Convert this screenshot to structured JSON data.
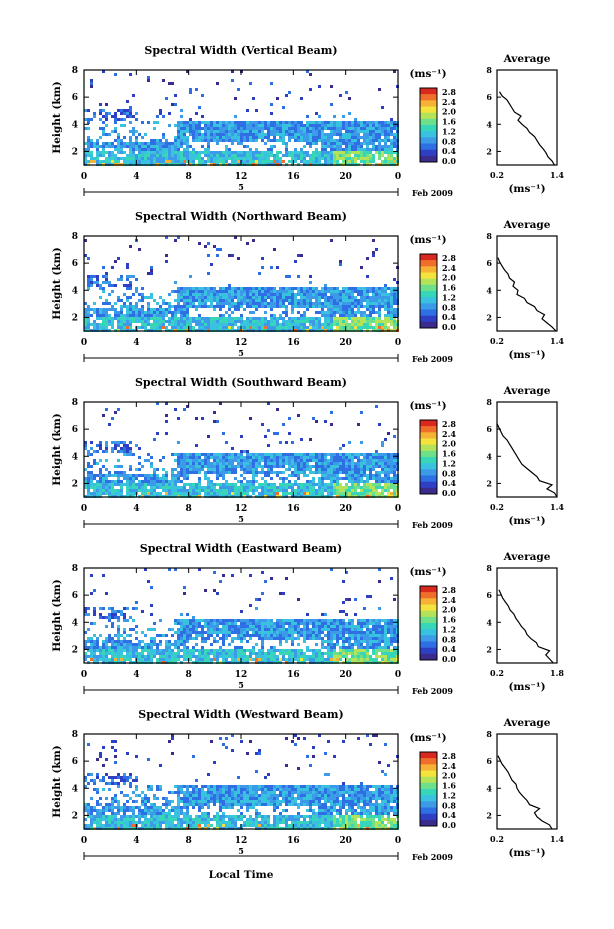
{
  "figure": {
    "colorbar_unit": "(ms⁻¹)",
    "average_title": "Average",
    "date_label": "Feb 2009",
    "day_label": "5",
    "xlabel": "Local Time"
  },
  "colors": {
    "colormap": [
      "#3a2b8c",
      "#2e3fc4",
      "#2f6fe4",
      "#3b9be8",
      "#39c2e0",
      "#38d6b8",
      "#6fe08a",
      "#b4e35a",
      "#f3e33c",
      "#f6b234",
      "#ef6f2a",
      "#d9281e"
    ],
    "background": "#ffffff"
  },
  "chart_data": [
    {
      "type": "heatmap",
      "title": "Spectral Width (Vertical Beam)",
      "ylabel": "Height (km)",
      "xlabel": "",
      "x_ticks": [
        "0",
        "4",
        "8",
        "12",
        "16",
        "20",
        "0"
      ],
      "y_ticks": [
        "2",
        "4",
        "6",
        "8"
      ],
      "xlim": [
        0,
        24
      ],
      "ylim": [
        1,
        8
      ],
      "colorbar": {
        "label": "(ms⁻¹)",
        "ticks": [
          "2.8",
          "2.4",
          "2.0",
          "1.6",
          "1.2",
          "0.8",
          "0.4",
          "0.0"
        ],
        "range": [
          0,
          2.8
        ]
      },
      "average": {
        "title": "Average",
        "xlabel": "(ms⁻¹)",
        "x_ticks": [
          "0.2",
          "1.4"
        ],
        "y_ticks": [
          "2",
          "4",
          "6",
          "8"
        ],
        "xlim": [
          0.2,
          1.4
        ],
        "ylim": [
          1,
          8
        ],
        "heights": [
          1.0,
          1.3,
          1.6,
          1.9,
          2.2,
          2.5,
          2.8,
          3.1,
          3.4,
          3.7,
          4.0,
          4.3,
          4.6,
          4.9,
          5.2,
          5.5,
          5.8,
          6.1,
          6.4
        ],
        "values": [
          1.35,
          1.3,
          1.22,
          1.18,
          1.12,
          1.05,
          1.0,
          0.95,
          0.85,
          0.8,
          0.7,
          0.62,
          0.68,
          0.55,
          0.5,
          0.45,
          0.4,
          0.3,
          0.25
        ]
      }
    },
    {
      "type": "heatmap",
      "title": "Spectral Width (Northward Beam)",
      "ylabel": "Height (km)",
      "xlabel": "",
      "x_ticks": [
        "0",
        "4",
        "8",
        "12",
        "16",
        "20",
        "0"
      ],
      "y_ticks": [
        "2",
        "4",
        "6",
        "8"
      ],
      "xlim": [
        0,
        24
      ],
      "ylim": [
        1,
        8
      ],
      "colorbar": {
        "label": "(ms⁻¹)",
        "ticks": [
          "2.8",
          "2.4",
          "2.0",
          "1.6",
          "1.2",
          "0.8",
          "0.4",
          "0.0"
        ],
        "range": [
          0,
          2.8
        ]
      },
      "average": {
        "title": "Average",
        "xlabel": "(ms⁻¹)",
        "x_ticks": [
          "0.2",
          "1.4"
        ],
        "y_ticks": [
          "2",
          "4",
          "6",
          "8"
        ],
        "xlim": [
          0.2,
          1.4
        ],
        "ylim": [
          1,
          8
        ],
        "heights": [
          1.0,
          1.3,
          1.6,
          1.9,
          2.2,
          2.5,
          2.8,
          3.1,
          3.4,
          3.7,
          4.0,
          4.3,
          4.6,
          4.9,
          5.2,
          5.5,
          5.8,
          6.1,
          6.4
        ],
        "values": [
          1.38,
          1.3,
          1.2,
          1.1,
          1.15,
          1.0,
          0.95,
          0.8,
          0.75,
          0.6,
          0.62,
          0.52,
          0.55,
          0.45,
          0.42,
          0.35,
          0.3,
          0.25,
          0.22
        ]
      }
    },
    {
      "type": "heatmap",
      "title": "Spectral Width (Southward Beam)",
      "ylabel": "Height (km)",
      "xlabel": "",
      "x_ticks": [
        "0",
        "4",
        "8",
        "12",
        "16",
        "20",
        "0"
      ],
      "y_ticks": [
        "2",
        "4",
        "6",
        "8"
      ],
      "xlim": [
        0,
        24
      ],
      "ylim": [
        1,
        8
      ],
      "colorbar": {
        "label": "(ms⁻¹)",
        "ticks": [
          "2.8",
          "2.4",
          "2.0",
          "1.6",
          "1.2",
          "0.8",
          "0.4",
          "0.0"
        ],
        "range": [
          0,
          2.8
        ]
      },
      "average": {
        "title": "Average",
        "xlabel": "(ms⁻¹)",
        "x_ticks": [
          "0.2",
          "1.4"
        ],
        "y_ticks": [
          "2",
          "4",
          "6",
          "8"
        ],
        "xlim": [
          0.2,
          1.4
        ],
        "ylim": [
          1,
          8
        ],
        "heights": [
          1.0,
          1.3,
          1.6,
          1.9,
          2.2,
          2.5,
          2.8,
          3.1,
          3.4,
          3.7,
          4.0,
          4.3,
          4.6,
          4.9,
          5.2,
          5.5,
          5.8,
          6.1,
          6.4
        ],
        "values": [
          1.4,
          1.35,
          1.2,
          1.3,
          1.05,
          1.0,
          0.9,
          0.8,
          0.7,
          0.65,
          0.6,
          0.55,
          0.5,
          0.45,
          0.4,
          0.32,
          0.28,
          0.24,
          0.2
        ]
      }
    },
    {
      "type": "heatmap",
      "title": "Spectral Width (Eastward Beam)",
      "ylabel": "Height (km)",
      "xlabel": "",
      "x_ticks": [
        "0",
        "4",
        "8",
        "12",
        "16",
        "20",
        "0"
      ],
      "y_ticks": [
        "2",
        "4",
        "6",
        "8"
      ],
      "xlim": [
        0,
        24
      ],
      "ylim": [
        1,
        8
      ],
      "colorbar": {
        "label": "(ms⁻¹)",
        "ticks": [
          "2.8",
          "2.4",
          "2.0",
          "1.6",
          "1.2",
          "0.8",
          "0.4",
          "0.0"
        ],
        "range": [
          0,
          2.8
        ]
      },
      "average": {
        "title": "Average",
        "xlabel": "(ms⁻¹)",
        "x_ticks": [
          "0.2",
          "1.8"
        ],
        "y_ticks": [
          "2",
          "4",
          "6",
          "8"
        ],
        "xlim": [
          0.2,
          1.8
        ],
        "ylim": [
          1,
          8
        ],
        "heights": [
          1.0,
          1.3,
          1.6,
          1.9,
          2.2,
          2.5,
          2.8,
          3.1,
          3.4,
          3.7,
          4.0,
          4.3,
          4.6,
          4.9,
          5.2,
          5.5,
          5.8,
          6.1,
          6.4
        ],
        "values": [
          1.7,
          1.6,
          1.5,
          1.6,
          1.3,
          1.25,
          1.1,
          1.0,
          0.95,
          0.85,
          0.78,
          0.7,
          0.65,
          0.55,
          0.5,
          0.42,
          0.35,
          0.3,
          0.25
        ]
      }
    },
    {
      "type": "heatmap",
      "title": "Spectral Width (Westward Beam)",
      "ylabel": "Height (km)",
      "xlabel": "Local Time",
      "x_ticks": [
        "0",
        "4",
        "8",
        "12",
        "16",
        "20",
        "0"
      ],
      "y_ticks": [
        "2",
        "4",
        "6",
        "8"
      ],
      "xlim": [
        0,
        24
      ],
      "ylim": [
        1,
        8
      ],
      "colorbar": {
        "label": "(ms⁻¹)",
        "ticks": [
          "2.8",
          "2.4",
          "2.0",
          "1.6",
          "1.2",
          "0.8",
          "0.4",
          "0.0"
        ],
        "range": [
          0,
          2.8
        ]
      },
      "average": {
        "title": "Average",
        "xlabel": "(ms⁻¹)",
        "x_ticks": [
          "0.2",
          "1.4"
        ],
        "y_ticks": [
          "2",
          "4",
          "6",
          "8"
        ],
        "xlim": [
          0.2,
          1.4
        ],
        "ylim": [
          1,
          8
        ],
        "heights": [
          1.0,
          1.3,
          1.6,
          1.9,
          2.2,
          2.5,
          2.8,
          3.1,
          3.4,
          3.7,
          4.0,
          4.3,
          4.6,
          4.9,
          5.2,
          5.5,
          5.8,
          6.1,
          6.4
        ],
        "values": [
          1.3,
          1.25,
          1.1,
          1.0,
          0.95,
          1.05,
          0.85,
          0.8,
          0.72,
          0.65,
          0.6,
          0.58,
          0.5,
          0.46,
          0.42,
          0.36,
          0.3,
          0.26,
          0.22
        ]
      }
    }
  ]
}
